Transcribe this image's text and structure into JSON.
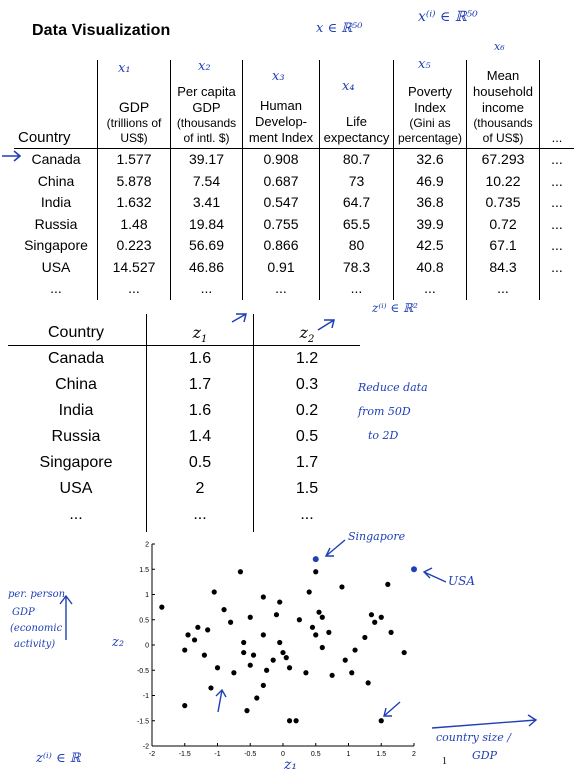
{
  "title": "Data Visualization",
  "annotations": {
    "x_in_r50": "x ∈ ℝ⁵⁰",
    "xi_in_r50": "x⁽ⁱ⁾ ∈ ℝ⁵⁰",
    "x1": "x₁",
    "x2": "x₂",
    "x3": "x₃",
    "x4": "x₄",
    "x5": "x₅",
    "x6": "x₆",
    "zi_in_r2": "z⁽ⁱ⁾ ∈ ℝ²",
    "reduce_line1": "Reduce data",
    "reduce_line2": "from 50D",
    "reduce_line3": "to 2D",
    "singapore": "Singapore",
    "usa": "USA",
    "per_person_1": "per. person",
    "per_person_2": "GDP",
    "per_person_3": "(economic",
    "per_person_4": "activity)",
    "z2": "z₂",
    "z1": "z₁",
    "country_size_1": "country size /",
    "country_size_2": "GDP",
    "zi_in_r": "z⁽ⁱ⁾ ∈ ℝ"
  },
  "table1": {
    "headers": [
      {
        "lines": [
          "Country"
        ]
      },
      {
        "lines": [
          "GDP"
        ],
        "sub": [
          "(trillions of",
          "US$)"
        ]
      },
      {
        "lines": [
          "Per capita",
          "GDP"
        ],
        "sub": [
          "(thousands",
          "of intl. $)"
        ]
      },
      {
        "lines": [
          "Human",
          "Develop-",
          "ment Index"
        ]
      },
      {
        "lines": [
          "Life",
          "expectancy"
        ]
      },
      {
        "lines": [
          "Poverty",
          "Index"
        ],
        "sub": [
          "(Gini as",
          "percentage)"
        ]
      },
      {
        "lines": [
          "Mean",
          "household",
          "income"
        ],
        "sub": [
          "(thousands",
          "of US$)"
        ]
      },
      {
        "lines": [
          "..."
        ]
      }
    ],
    "rows": [
      [
        "Canada",
        "1.577",
        "39.17",
        "0.908",
        "80.7",
        "32.6",
        "67.293",
        "..."
      ],
      [
        "China",
        "5.878",
        "7.54",
        "0.687",
        "73",
        "46.9",
        "10.22",
        "..."
      ],
      [
        "India",
        "1.632",
        "3.41",
        "0.547",
        "64.7",
        "36.8",
        "0.735",
        "..."
      ],
      [
        "Russia",
        "1.48",
        "19.84",
        "0.755",
        "65.5",
        "39.9",
        "0.72",
        "..."
      ],
      [
        "Singapore",
        "0.223",
        "56.69",
        "0.866",
        "80",
        "42.5",
        "67.1",
        "..."
      ],
      [
        "USA",
        "14.527",
        "46.86",
        "0.91",
        "78.3",
        "40.8",
        "84.3",
        "..."
      ],
      [
        "...",
        "...",
        "...",
        "...",
        "...",
        "...",
        "...",
        ""
      ]
    ]
  },
  "table2": {
    "headers": [
      "Country",
      "z1",
      "z2"
    ],
    "rows": [
      [
        "Canada",
        "1.6",
        "1.2"
      ],
      [
        "China",
        "1.7",
        "0.3"
      ],
      [
        "India",
        "1.6",
        "0.2"
      ],
      [
        "Russia",
        "1.4",
        "0.5"
      ],
      [
        "Singapore",
        "0.5",
        "1.7"
      ],
      [
        "USA",
        "2",
        "1.5"
      ],
      [
        "...",
        "...",
        "..."
      ]
    ]
  },
  "page_number": "1",
  "chart_data": {
    "type": "scatter",
    "xlim": [
      -2,
      2
    ],
    "ylim": [
      -2,
      2
    ],
    "xticks": [
      "-2",
      "-1.5",
      "-1",
      "-0.5",
      "0",
      "0.5",
      "1",
      "1.5",
      "2"
    ],
    "yticks": [
      "2",
      "1.5",
      "1",
      "0.5",
      "0",
      "-0.5",
      "-1",
      "-1.5",
      "-2"
    ],
    "grid": false,
    "points_black": [
      [
        -1.85,
        0.75
      ],
      [
        -1.45,
        0.2
      ],
      [
        -1.3,
        0.35
      ],
      [
        -1.35,
        0.1
      ],
      [
        -1.5,
        -0.1
      ],
      [
        -1.5,
        -1.2
      ],
      [
        -1.2,
        -0.2
      ],
      [
        -1.15,
        0.3
      ],
      [
        -1.05,
        1.05
      ],
      [
        -1.0,
        -0.45
      ],
      [
        -0.9,
        0.7
      ],
      [
        -0.8,
        0.45
      ],
      [
        -0.75,
        -0.55
      ],
      [
        -0.65,
        1.45
      ],
      [
        -0.6,
        0.05
      ],
      [
        -0.6,
        -0.15
      ],
      [
        -0.5,
        0.55
      ],
      [
        -0.5,
        -0.4
      ],
      [
        -0.45,
        -0.2
      ],
      [
        -0.4,
        -1.05
      ],
      [
        -0.3,
        0.95
      ],
      [
        -0.3,
        0.2
      ],
      [
        -0.3,
        -0.8
      ],
      [
        -0.25,
        -0.5
      ],
      [
        -0.15,
        -0.3
      ],
      [
        -0.1,
        0.6
      ],
      [
        -0.05,
        0.85
      ],
      [
        0.0,
        -0.15
      ],
      [
        0.05,
        -0.25
      ],
      [
        0.1,
        -0.45
      ],
      [
        0.1,
        -1.5
      ],
      [
        0.2,
        -1.5
      ],
      [
        0.25,
        0.5
      ],
      [
        0.35,
        -0.55
      ],
      [
        0.4,
        1.05
      ],
      [
        0.45,
        0.35
      ],
      [
        0.5,
        0.2
      ],
      [
        0.55,
        0.65
      ],
      [
        0.6,
        0.55
      ],
      [
        0.6,
        -0.05
      ],
      [
        0.7,
        0.25
      ],
      [
        0.75,
        -0.6
      ],
      [
        0.9,
        1.15
      ],
      [
        0.95,
        -0.3
      ],
      [
        1.05,
        -0.55
      ],
      [
        1.1,
        -0.1
      ],
      [
        1.25,
        0.15
      ],
      [
        1.35,
        0.6
      ],
      [
        1.4,
        0.45
      ],
      [
        1.5,
        0.55
      ],
      [
        1.6,
        1.2
      ],
      [
        1.65,
        0.25
      ],
      [
        1.85,
        -0.15
      ],
      [
        -0.55,
        -1.3
      ],
      [
        -1.1,
        -0.85
      ],
      [
        0.5,
        1.45
      ],
      [
        -0.05,
        0.05
      ],
      [
        1.3,
        -0.75
      ],
      [
        1.5,
        -1.5
      ]
    ],
    "points_blue": [
      [
        0.5,
        1.7
      ],
      [
        2.0,
        1.5
      ]
    ]
  }
}
